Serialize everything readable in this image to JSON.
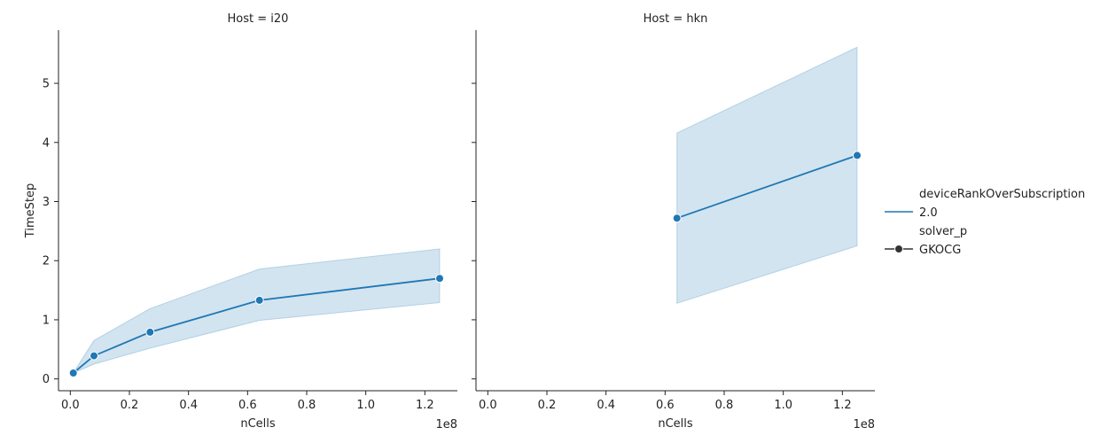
{
  "chart_data": {
    "type": "line",
    "ylabel": "TimeStep",
    "xlabel": "nCells",
    "x_offset_label": "1e8",
    "x_scale_factor": 100000000,
    "xlim": [
      -4000000,
      131000000
    ],
    "ylim": [
      -0.2,
      5.9
    ],
    "xticks": [
      0,
      20000000,
      40000000,
      60000000,
      80000000,
      100000000,
      120000000
    ],
    "xtick_labels": [
      "0.0",
      "0.2",
      "0.4",
      "0.6",
      "0.8",
      "1.0",
      "1.2"
    ],
    "yticks": [
      0,
      1,
      2,
      3,
      4,
      5
    ],
    "ytick_labels": [
      "0",
      "1",
      "2",
      "3",
      "4",
      "5"
    ],
    "grid": false,
    "legend_placement": "right",
    "colors": {
      "line": "#1f77b4",
      "band": "#1f77b4",
      "axis": "#222222"
    },
    "panels": [
      {
        "title": "Host = i20",
        "x": [
          1000000,
          8000000,
          27000000,
          64000000,
          125000000
        ],
        "y": [
          0.1,
          0.39,
          0.79,
          1.33,
          1.7
        ],
        "ci_low": [
          0.1,
          0.25,
          0.52,
          0.99,
          1.29
        ],
        "ci_high": [
          0.1,
          0.65,
          1.19,
          1.86,
          2.2
        ]
      },
      {
        "title": "Host = hkn",
        "x": [
          64000000,
          125000000
        ],
        "y": [
          2.72,
          3.78
        ],
        "ci_low": [
          1.28,
          2.25
        ],
        "ci_high": [
          4.16,
          5.61
        ]
      }
    ],
    "legend": {
      "hue_title": "deviceRankOverSubscription",
      "hue_entries": [
        "2.0"
      ],
      "style_title": "solver_p",
      "style_entries": [
        "GKOCG"
      ]
    }
  }
}
